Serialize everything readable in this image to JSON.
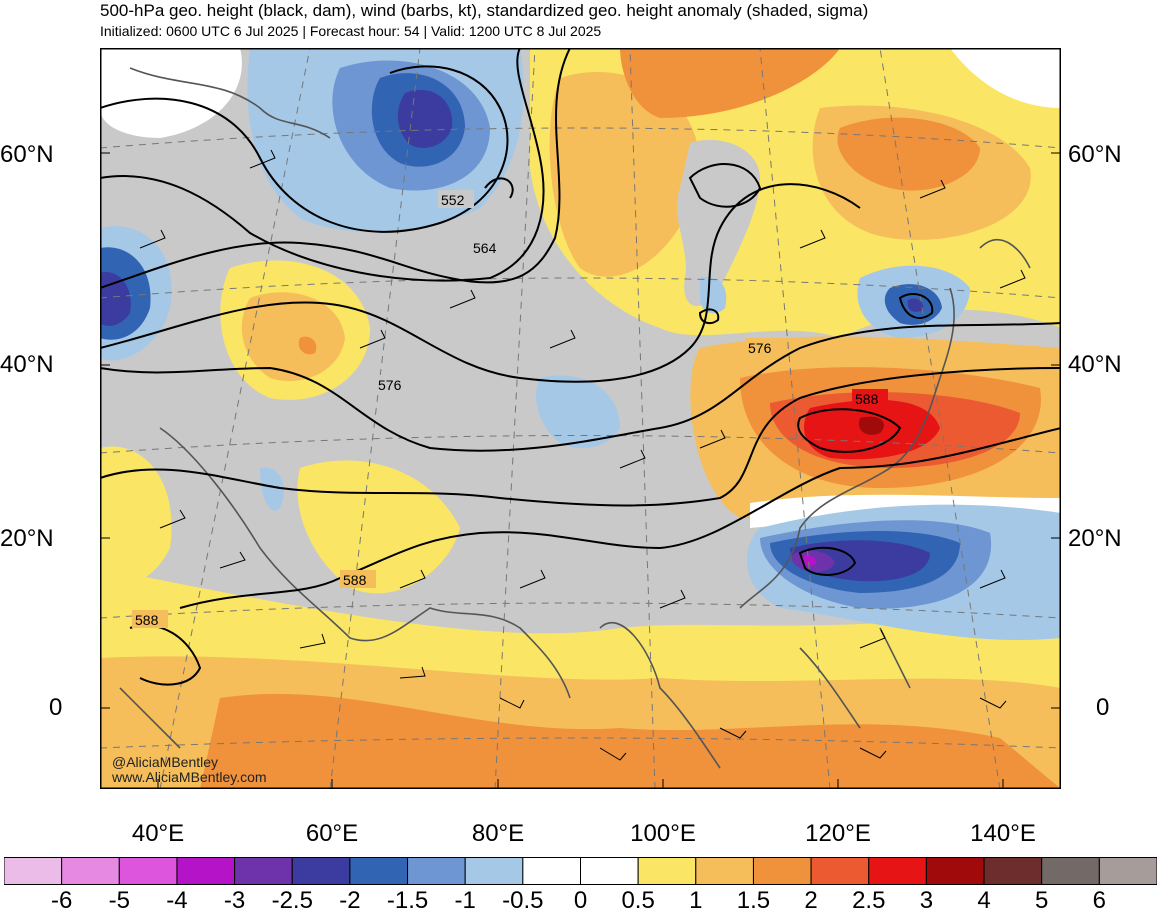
{
  "header": {
    "title": "500-hPa geo. height (black, dam), wind (barbs, kt), standardized geo. height anomaly (shaded, sigma)",
    "subtitle": "Initialized: 0600 UTC 6 Jul 2025 | Forecast hour: 54 | Valid: 1200 UTC 8 Jul 2025"
  },
  "map": {
    "lat_labels": [
      "60°N",
      "40°N",
      "20°N",
      "0"
    ],
    "lon_labels": [
      "40°E",
      "60°E",
      "80°E",
      "100°E",
      "120°E",
      "140°E"
    ],
    "contour_labels": [
      "552",
      "564",
      "576",
      "576",
      "588",
      "588",
      "588"
    ],
    "watermark": {
      "handle": "@AliciaMBentley",
      "site": "www.AliciaMBentley.com"
    }
  },
  "colorbar": {
    "labels": [
      "-6",
      "-5",
      "-4",
      "-3",
      "-2.5",
      "-2",
      "-1.5",
      "-1",
      "-0.5",
      "0",
      "0.5",
      "1",
      "1.5",
      "2",
      "2.5",
      "3",
      "4",
      "5",
      "6"
    ],
    "colors": [
      "#ebbce8",
      "#e689e3",
      "#dc55dc",
      "#b413c8",
      "#6e32aa",
      "#3c3ca0",
      "#3264b4",
      "#6e96d2",
      "#a5c8e6",
      "#ffffff",
      "#ffffff",
      "#fae664",
      "#f5be5a",
      "#f0913c",
      "#ec5a32",
      "#e61414",
      "#a00a0a",
      "#6e2d2d",
      "#736966",
      "#a69c99"
    ]
  }
}
